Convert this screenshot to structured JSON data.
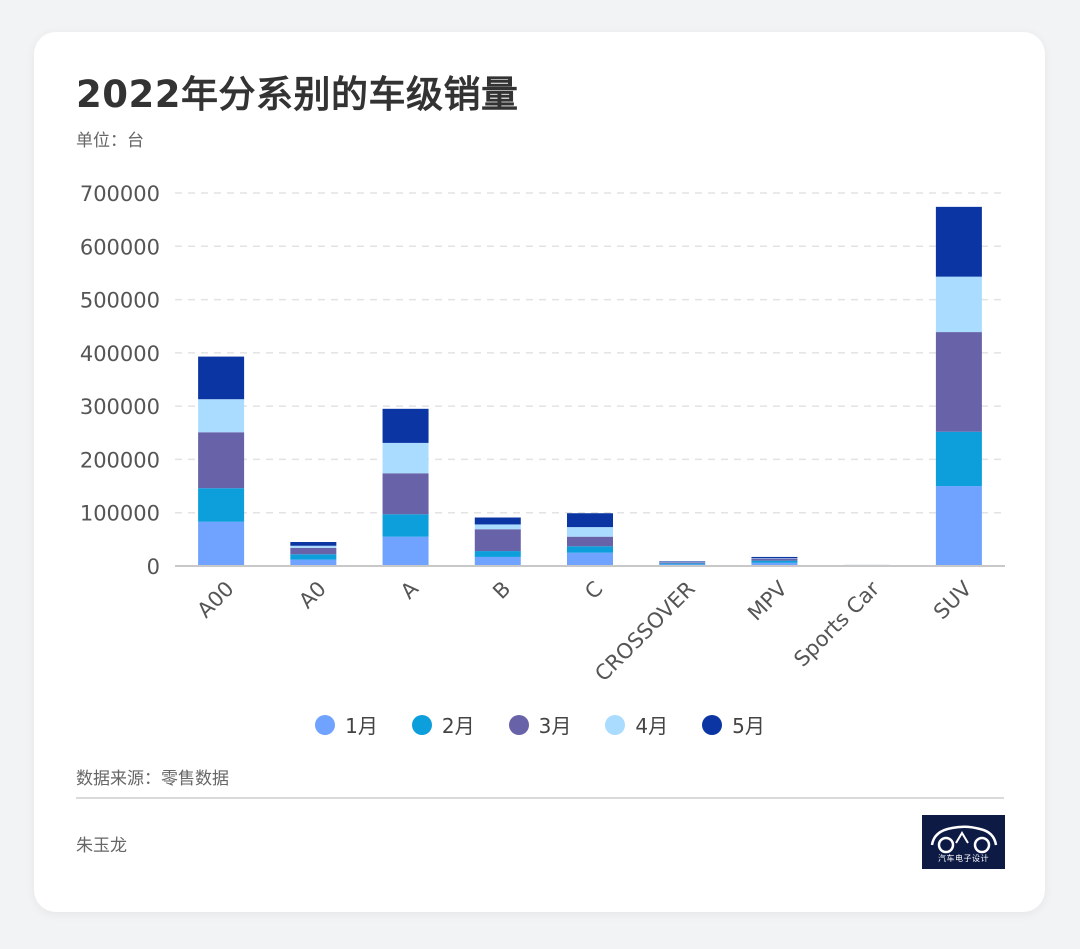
{
  "title": "2022年分系别的车级销量",
  "unit_label": "单位：台",
  "source_label": "数据来源：零售数据",
  "author": "朱玉龙",
  "logo_text": "汽车电子设计",
  "chart_data": {
    "type": "bar",
    "stacked": true,
    "title": "2022年分系别的车级销量",
    "xlabel": "",
    "ylabel": "",
    "ylim": [
      0,
      700000
    ],
    "yticks": [
      0,
      100000,
      200000,
      300000,
      400000,
      500000,
      600000,
      700000
    ],
    "grid": "horizontal-dashed",
    "legend_position": "bottom",
    "categories": [
      "A00",
      "A0",
      "A",
      "B",
      "C",
      "CROSSOVER",
      "MPV",
      "Sports Car",
      "SUV"
    ],
    "series": [
      {
        "name": "1月",
        "color": "#6fa3ff",
        "values": [
          83000,
          12000,
          55000,
          17000,
          25000,
          3000,
          6000,
          500,
          150000
        ]
      },
      {
        "name": "2月",
        "color": "#0c9fdb",
        "values": [
          63000,
          10000,
          42000,
          11000,
          12000,
          2000,
          4000,
          500,
          102000
        ]
      },
      {
        "name": "3月",
        "color": "#6862a8",
        "values": [
          105000,
          12000,
          77000,
          41000,
          18000,
          2000,
          4000,
          500,
          187000
        ]
      },
      {
        "name": "4月",
        "color": "#a9dcff",
        "values": [
          62000,
          4000,
          57000,
          9000,
          18000,
          1000,
          1000,
          300,
          104000
        ]
      },
      {
        "name": "5月",
        "color": "#0a35a3",
        "values": [
          80000,
          7000,
          64000,
          13000,
          26000,
          1000,
          2000,
          200,
          131000
        ]
      }
    ]
  }
}
